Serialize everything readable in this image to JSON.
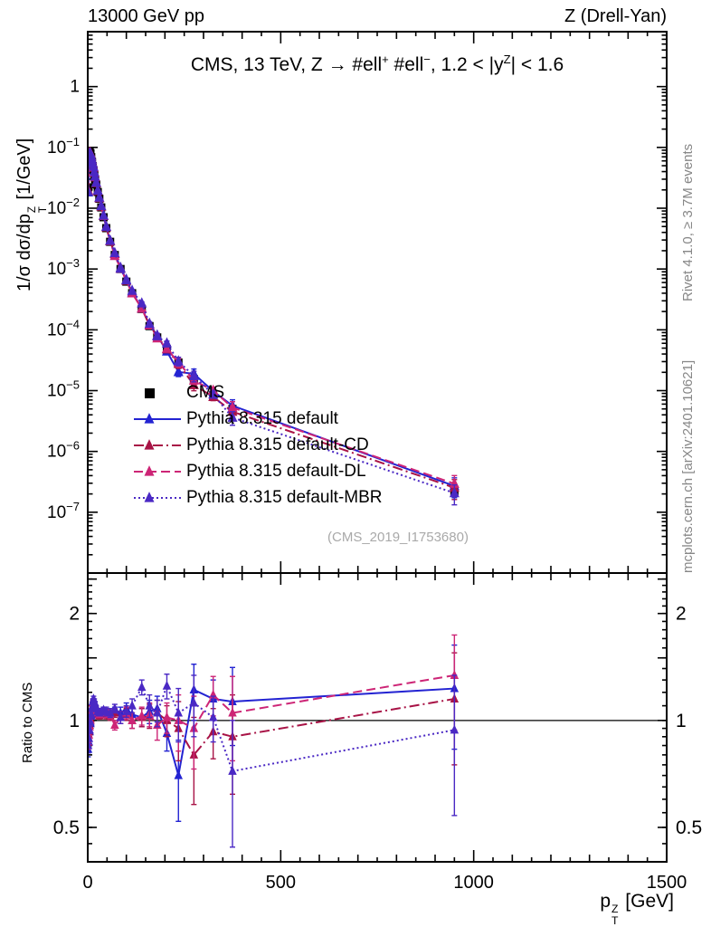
{
  "header": {
    "left": "13000 GeV pp",
    "right": "Z (Drell-Yan)"
  },
  "side_notes": {
    "top": "Rivet 4.1.0, ≥ 3.7M events",
    "bottom": "mcplots.cern.ch [arXiv:2401.10621]"
  },
  "watermark": "(CMS_2019_I1753680)",
  "title": {
    "t1": "CMS, 13 TeV, Z →  #ell",
    "sup1": "+",
    "t2": " #ell",
    "sup2": "−",
    "t3": ", 1.2 < |y",
    "sup3": "Z",
    "t4": "| < 1.6"
  },
  "axes": {
    "x_title": {
      "a": "p",
      "sub": "T",
      "sup": "Z",
      "b": " [GeV]"
    },
    "y_title_main": {
      "a": "1/σ dσ/dp",
      "sub": "T",
      "sup": "Z",
      "b": " [1/GeV]"
    },
    "y_title_ratio": "Ratio to CMS",
    "x_ticks": [
      {
        "v": 0,
        "t": "0"
      },
      {
        "v": 500,
        "t": "500"
      },
      {
        "v": 1000,
        "t": "1000"
      },
      {
        "v": 1500,
        "t": "1500"
      }
    ],
    "main_y_ticks": [
      {
        "v": 1,
        "t": "1"
      },
      {
        "v": 0.1,
        "t": "10",
        "e": "−1"
      },
      {
        "v": 0.01,
        "t": "10",
        "e": "−2"
      },
      {
        "v": 0.001,
        "t": "10",
        "e": "−3"
      },
      {
        "v": 0.0001,
        "t": "10",
        "e": "−4"
      },
      {
        "v": 1e-05,
        "t": "10",
        "e": "−5"
      },
      {
        "v": 1e-06,
        "t": "10",
        "e": "−6"
      },
      {
        "v": 1e-07,
        "t": "10",
        "e": "−7"
      }
    ],
    "ratio_y_ticks": [
      {
        "v": 0.5,
        "t": "0.5"
      },
      {
        "v": 1,
        "t": "1"
      },
      {
        "v": 2,
        "t": "2"
      }
    ]
  },
  "colors": {
    "frame": "#000000",
    "cms": "#000000",
    "pythia_default": "#2323d2",
    "pythia_cd": "#a81346",
    "pythia_dl": "#cd2576",
    "pythia_mbr": "#4a28c4",
    "side_note": "#878787",
    "watermark": "#a9a9a9"
  },
  "chart_data": {
    "type": "line",
    "title": "CMS, 13 TeV, Z → #ell+ #ell−, 1.2 < |y^Z| < 1.6",
    "xlabel": "p_T^Z [GeV]",
    "ylabel": "1/σ dσ/dp_T^Z [1/GeV]",
    "ylabel_ratio": "Ratio to CMS",
    "xlim": [
      0,
      1500
    ],
    "ylim_main": [
      1e-08,
      8
    ],
    "ylim_ratio": [
      0.4,
      2.6
    ],
    "y_scale": "log",
    "grid": false,
    "legend_position": "center-left",
    "x": [
      1,
      3,
      5,
      7,
      9,
      11,
      13,
      15,
      17,
      19,
      22,
      26,
      30,
      35,
      41,
      48,
      58,
      70,
      85,
      100,
      115,
      140,
      160,
      180,
      205,
      235,
      275,
      325,
      375,
      950
    ],
    "cms": {
      "name": "CMS",
      "marker": "square",
      "values": [
        0.022,
        0.065,
        0.085,
        0.08,
        0.069,
        0.058,
        0.049,
        0.042,
        0.035,
        0.03,
        0.0245,
        0.0185,
        0.0143,
        0.0103,
        0.0071,
        0.0047,
        0.0028,
        0.0017,
        0.001,
        0.00062,
        0.0004,
        0.00022,
        0.000115,
        7.5e-05,
        4.8e-05,
        2.9e-05,
        1.55e-05,
        8.5e-06,
        5e-06,
        2.2e-07
      ],
      "err_rel": [
        0.05,
        0.02,
        0.02,
        0.02,
        0.02,
        0.02,
        0.02,
        0.02,
        0.02,
        0.02,
        0.02,
        0.02,
        0.02,
        0.02,
        0.02,
        0.02,
        0.02,
        0.03,
        0.03,
        0.03,
        0.04,
        0.05,
        0.05,
        0.06,
        0.07,
        0.08,
        0.09,
        0.1,
        0.12,
        0.18
      ]
    },
    "series": [
      {
        "name": "Pythia 8.315 default",
        "line": "solid",
        "marker": "triangle",
        "ratio": [
          0.83,
          0.87,
          0.93,
          0.98,
          1.03,
          1.08,
          1.12,
          1.13,
          1.11,
          1.09,
          1.07,
          1.05,
          1.04,
          1.05,
          1.06,
          1.05,
          1.04,
          1.06,
          1.05,
          1.08,
          1.04,
          1.02,
          1.06,
          1.08,
          0.92,
          0.7,
          1.22,
          1.15,
          1.13,
          1.23
        ]
      },
      {
        "name": "Pythia 8.315 default-CD",
        "line": "dashdot",
        "marker": "triangle",
        "ratio": [
          0.9,
          0.93,
          0.97,
          1.01,
          1.04,
          1.07,
          1.1,
          1.11,
          1.1,
          1.08,
          1.06,
          1.04,
          1.03,
          1.04,
          1.05,
          1.04,
          1.03,
          1.05,
          1.02,
          1.04,
          1.0,
          1.02,
          1.03,
          1.05,
          1.0,
          0.95,
          0.8,
          0.93,
          0.9,
          1.15
        ]
      },
      {
        "name": "Pythia 8.315 default-DL",
        "line": "dashed",
        "marker": "triangle",
        "ratio": [
          0.87,
          0.91,
          0.96,
          1.0,
          1.05,
          1.09,
          1.12,
          1.13,
          1.11,
          1.09,
          1.07,
          1.05,
          1.04,
          1.05,
          1.06,
          1.05,
          1.04,
          0.97,
          1.02,
          1.05,
          1.0,
          1.03,
          1.04,
          0.97,
          1.02,
          1.0,
          0.95,
          1.18,
          1.05,
          1.34
        ]
      },
      {
        "name": "Pythia 8.315 default-MBR",
        "line": "dotted",
        "marker": "triangle",
        "ratio": [
          0.85,
          0.89,
          0.94,
          0.99,
          1.04,
          1.09,
          1.13,
          1.15,
          1.13,
          1.11,
          1.08,
          1.06,
          1.05,
          1.06,
          1.07,
          1.06,
          1.05,
          1.08,
          1.02,
          1.06,
          1.1,
          1.24,
          1.1,
          1.05,
          1.25,
          1.05,
          1.12,
          1.02,
          0.72,
          0.94
        ]
      }
    ],
    "ratio_err": [
      0.04,
      0.03,
      0.02,
      0.02,
      0.02,
      0.02,
      0.02,
      0.02,
      0.02,
      0.02,
      0.02,
      0.02,
      0.02,
      0.02,
      0.02,
      0.03,
      0.03,
      0.03,
      0.04,
      0.04,
      0.05,
      0.06,
      0.08,
      0.09,
      0.1,
      0.18,
      0.22,
      0.15,
      0.28,
      0.4
    ],
    "ratio_baseline": 1
  }
}
